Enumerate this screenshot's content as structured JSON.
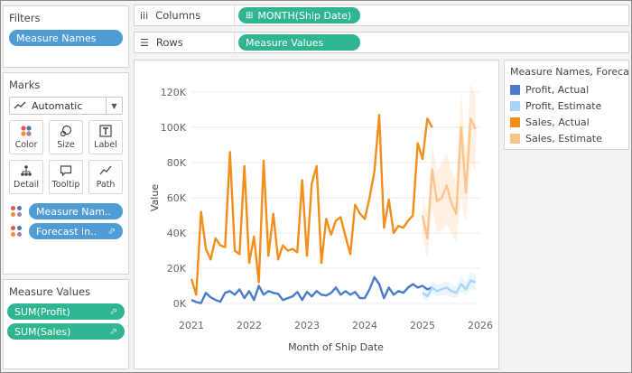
{
  "filters": {
    "title": "Filters",
    "pill": "Measure Names"
  },
  "marks": {
    "title": "Marks",
    "mark_type": "Automatic",
    "buttons": [
      {
        "label": "Color",
        "icon": "color-icon"
      },
      {
        "label": "Size",
        "icon": "size-icon"
      },
      {
        "label": "Label",
        "icon": "label-icon"
      },
      {
        "label": "Detail",
        "icon": "detail-icon"
      },
      {
        "label": "Tooltip",
        "icon": "tooltip-icon"
      },
      {
        "label": "Path",
        "icon": "path-icon"
      }
    ],
    "pills": [
      "Measure Nam..",
      "Forecast in.."
    ]
  },
  "measure_values": {
    "title": "Measure Values",
    "pills": [
      "SUM(Profit)",
      "SUM(Sales)"
    ]
  },
  "shelves": {
    "columns": {
      "label": "Columns",
      "pill": "MONTH(Ship Date)"
    },
    "rows": {
      "label": "Rows",
      "pill": "Measure Values"
    }
  },
  "legend": {
    "title": "Measure Names, Foreca...",
    "items": [
      {
        "label": "Profit, Actual",
        "color": "#4a7cc9"
      },
      {
        "label": "Profit, Estimate",
        "color": "#a8d5f5"
      },
      {
        "label": "Sales, Actual",
        "color": "#f28e1c"
      },
      {
        "label": "Sales, Estimate",
        "color": "#fbc48c"
      }
    ]
  },
  "chart_data": {
    "type": "line",
    "xlabel": "Month of Ship Date",
    "ylabel": "Value",
    "x_ticks": [
      "2021",
      "2022",
      "2023",
      "2024",
      "2025",
      "2026"
    ],
    "y_ticks": [
      "0K",
      "20K",
      "40K",
      "60K",
      "80K",
      "100K",
      "120K"
    ],
    "ylim": [
      0,
      120000
    ],
    "xlim": [
      "2021-01",
      "2026-01"
    ],
    "series": [
      {
        "name": "Sales, Actual",
        "color": "#f28e1c",
        "x_start": "2021-01",
        "values": [
          14000,
          5000,
          52000,
          31000,
          25000,
          37000,
          33000,
          32000,
          86000,
          30000,
          28000,
          78000,
          23000,
          38000,
          12000,
          81000,
          27000,
          51000,
          25000,
          33000,
          30000,
          31000,
          29000,
          70000,
          27000,
          68000,
          78000,
          23000,
          48000,
          39000,
          47000,
          49000,
          38000,
          28000,
          56000,
          51000,
          48000,
          60000,
          75000,
          107000,
          43000,
          59000,
          40000,
          44000,
          43000,
          47000,
          50000,
          91000,
          82000,
          105000,
          100000
        ]
      },
      {
        "name": "Sales, Estimate",
        "color": "#fbc48c",
        "x_start": "2025-01",
        "values": [
          50000,
          37000,
          76000,
          58000,
          60000,
          67000,
          57000,
          51000,
          100000,
          63000,
          105000,
          99000
        ],
        "band_low": [
          40000,
          25000,
          55000,
          40000,
          42000,
          45000,
          40000,
          35000,
          60000,
          45000,
          80000,
          75000
        ],
        "band_high": [
          62000,
          50000,
          90000,
          75000,
          80000,
          85000,
          75000,
          70000,
          120000,
          85000,
          125000,
          118000
        ]
      },
      {
        "name": "Profit, Actual",
        "color": "#4a7cc9",
        "x_start": "2021-01",
        "values": [
          2000,
          800,
          200,
          6000,
          3500,
          2000,
          1000,
          6000,
          7000,
          5000,
          8000,
          3000,
          7000,
          2000,
          10000,
          5000,
          7000,
          6000,
          5500,
          2000,
          3000,
          4000,
          6500,
          2000,
          6500,
          4000,
          7000,
          5000,
          4500,
          6000,
          9000,
          5000,
          7000,
          5000,
          6500,
          3000,
          3000,
          8000,
          15000,
          11000,
          3000,
          9000,
          5000,
          7000,
          6000,
          9000,
          11000,
          9000,
          10000,
          8000,
          9000
        ]
      },
      {
        "name": "Profit, Estimate",
        "color": "#a8d5f5",
        "x_start": "2025-01",
        "values": [
          6000,
          4000,
          9000,
          7000,
          8000,
          9000,
          7000,
          6000,
          11000,
          8000,
          13000,
          12000
        ],
        "band_low": [
          3000,
          1500,
          5500,
          4000,
          4500,
          5000,
          3500,
          3000,
          6500,
          4500,
          8000,
          7500
        ],
        "band_high": [
          9000,
          7000,
          13000,
          10500,
          11500,
          13000,
          10500,
          9500,
          15500,
          12000,
          18000,
          16500
        ]
      }
    ]
  }
}
